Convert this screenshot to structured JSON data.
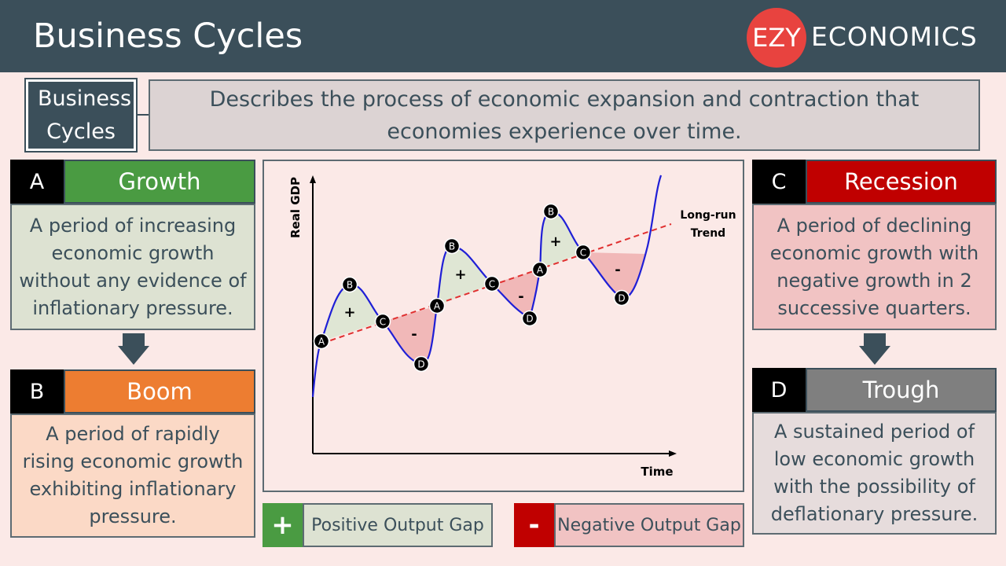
{
  "header": {
    "title": "Business Cycles",
    "logo_mark": "EZY",
    "logo_text": "ECONOMICS"
  },
  "definition": {
    "term": "Business Cycles",
    "text": "Describes the process of economic expansion and contraction that economies experience over time."
  },
  "phases": [
    {
      "letter": "A",
      "name": "Growth",
      "description": "A period of increasing economic growth without any evidence of inflationary pressure.",
      "color": "#4a9b42",
      "desc_bg": "#dde2d2"
    },
    {
      "letter": "B",
      "name": "Boom",
      "description": "A period of rapidly rising economic growth exhibiting inflationary pressure.",
      "color": "#ed7d31",
      "desc_bg": "#fbd9c6"
    },
    {
      "letter": "C",
      "name": "Recession",
      "description": "A period of declining economic growth with negative growth in 2 successive quarters.",
      "color": "#c00000",
      "desc_bg": "#f1c3c3"
    },
    {
      "letter": "D",
      "name": "Trough",
      "description": "A sustained period of low economic growth with the possibility of deflationary pressure.",
      "color": "#7f7f7f",
      "desc_bg": "#e6dcdc"
    }
  ],
  "chart": {
    "ylabel": "Real GDP",
    "xlabel": "Time",
    "trend_label": [
      "Long-run",
      "Trend"
    ],
    "curve_color": "#1f1fd6",
    "trend_color": "#e03030",
    "positive_fill": "#dfe6d4",
    "negative_fill": "#f1b8b8",
    "points": [
      {
        "label": "A"
      },
      {
        "label": "B"
      },
      {
        "label": "C"
      },
      {
        "label": "D"
      },
      {
        "label": "A"
      },
      {
        "label": "B"
      },
      {
        "label": "C"
      },
      {
        "label": "D"
      },
      {
        "label": "A"
      },
      {
        "label": "B"
      },
      {
        "label": "C"
      },
      {
        "label": "D"
      }
    ],
    "gap_signs": [
      "+",
      "-",
      "+",
      "-",
      "+",
      "-"
    ]
  },
  "legend": [
    {
      "symbol": "+",
      "label": "Positive Output Gap",
      "symbol_color": "#4a9b42",
      "label_bg": "#dde2d2"
    },
    {
      "symbol": "-",
      "label": "Negative Output Gap",
      "symbol_color": "#c00000",
      "label_bg": "#f1c3c3"
    }
  ]
}
